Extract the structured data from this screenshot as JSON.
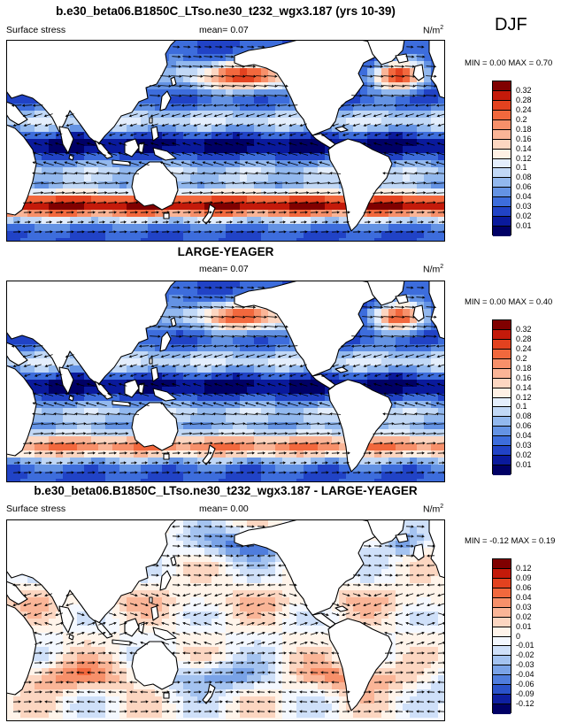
{
  "season": "DJF",
  "panels": [
    {
      "title": "b.e30_beta06.B1850C_LTso.ne30_t232_wgx3.187 (yrs 10-39)",
      "variable": "Surface stress",
      "mean": "mean=  0.07",
      "units": "N/m",
      "units_sup": "2",
      "min_label": "MIN = ",
      "min_value": "0.00",
      "max_label": "MAX = ",
      "max_value": "0.70",
      "levels": [
        "0.32",
        "0.28",
        "0.24",
        "0.2",
        "0.18",
        "0.16",
        "0.14",
        "0.12",
        "0.1",
        "0.08",
        "0.06",
        "0.04",
        "0.03",
        "0.02",
        "0.01"
      ]
    },
    {
      "title": "LARGE-YEAGER",
      "variable": "",
      "mean": "mean=  0.07",
      "units": "N/m",
      "units_sup": "2",
      "min_label": "MIN = ",
      "min_value": "0.00",
      "max_label": "MAX = ",
      "max_value": "0.40",
      "levels": [
        "0.32",
        "0.28",
        "0.24",
        "0.2",
        "0.18",
        "0.16",
        "0.14",
        "0.12",
        "0.1",
        "0.08",
        "0.06",
        "0.04",
        "0.03",
        "0.02",
        "0.01"
      ]
    },
    {
      "title": "b.e30_beta06.B1850C_LTso.ne30_t232_wgx3.187 - LARGE-YEAGER",
      "variable": "Surface stress",
      "mean": "mean=  0.00",
      "units": "N/m",
      "units_sup": "2",
      "min_label": "MIN = ",
      "min_value": "-0.12",
      "max_label": "MAX = ",
      "max_value": "0.19",
      "levels": [
        "0.12",
        "0.09",
        "0.06",
        "0.04",
        "0.03",
        "0.02",
        "0.01",
        "0",
        "-0.01",
        "-0.02",
        "-0.03",
        "-0.04",
        "-0.06",
        "-0.09",
        "-0.12"
      ]
    }
  ],
  "colors": {
    "seq_scale": [
      "#800000",
      "#c41a0a",
      "#e3421f",
      "#f2683d",
      "#f7906a",
      "#fab597",
      "#fcd6c1",
      "#fff0e4",
      "#e4eefc",
      "#c1d8f6",
      "#92b8ee",
      "#6493e4",
      "#3d6ddc",
      "#2143c6",
      "#0a1a9c",
      "#000066"
    ],
    "diff_scale": [
      "#800000",
      "#c41a0a",
      "#e3421f",
      "#f2683d",
      "#f7906a",
      "#fab597",
      "#fcd6c1",
      "#fff4ea",
      "#f4f8ff",
      "#cfe0f9",
      "#a4c3f0",
      "#7aa3e7",
      "#4f7ddd",
      "#2a52c9",
      "#0e1fa0",
      "#000066"
    ],
    "land": "#ffffff",
    "coast": "#000000",
    "arrow": "#000000"
  }
}
